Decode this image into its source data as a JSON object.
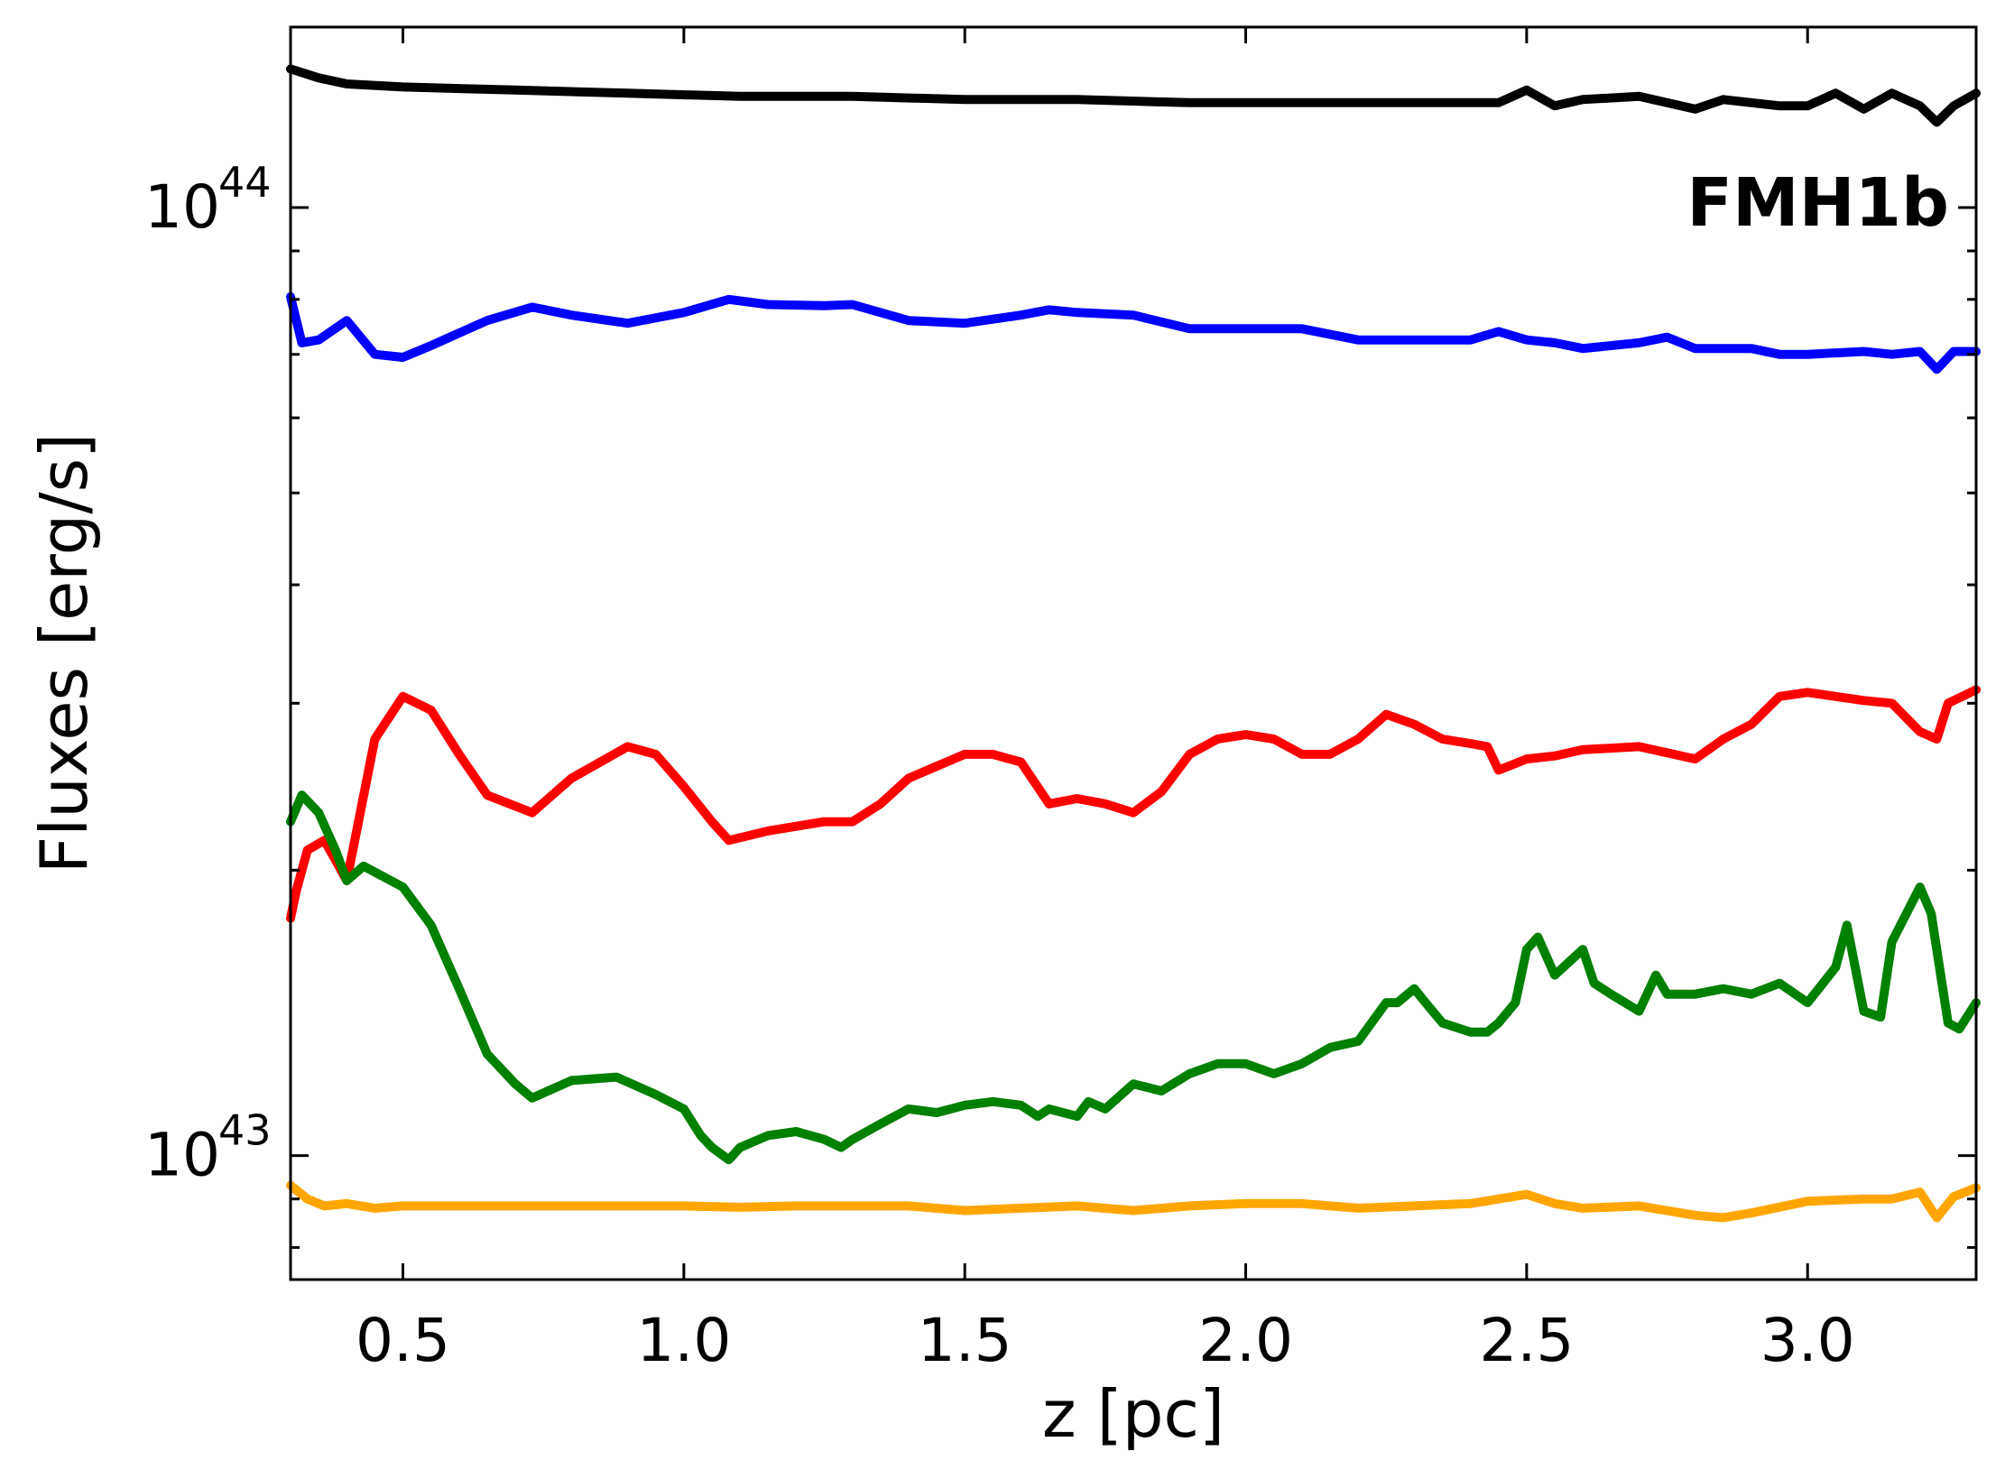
{
  "chart_data": {
    "type": "line",
    "title": "",
    "xlabel": "z [pc]",
    "ylabel": "Fluxes [erg/s]",
    "xlim": [
      0.3,
      3.3
    ],
    "ylim": [
      7.4e+42,
      1.55e+44
    ],
    "yscale": "log",
    "grid": false,
    "legend": "none",
    "annotation": "FMH1b",
    "xticks": [
      {
        "value": 0.5,
        "label": "0.5"
      },
      {
        "value": 1.0,
        "label": "1.0"
      },
      {
        "value": 1.5,
        "label": "1.5"
      },
      {
        "value": 2.0,
        "label": "2.0"
      },
      {
        "value": 2.5,
        "label": "2.5"
      },
      {
        "value": 3.0,
        "label": "3.0"
      }
    ],
    "yticks_major": [
      {
        "value": 1e+43,
        "base": "10",
        "exp": "43"
      },
      {
        "value": 1e+44,
        "base": "10",
        "exp": "44"
      }
    ],
    "yticks_minor": [
      8e+42,
      9e+42,
      2e+43,
      3e+43,
      4e+43,
      5e+43,
      6e+43,
      7e+43,
      8e+43,
      9e+43
    ],
    "series": [
      {
        "color": "#000000",
        "x": [
          0.3,
          0.35,
          0.4,
          0.5,
          0.7,
          0.9,
          1.1,
          1.3,
          1.5,
          1.7,
          1.9,
          2.1,
          2.3,
          2.45,
          2.5,
          2.55,
          2.6,
          2.7,
          2.8,
          2.85,
          2.95,
          3.0,
          3.05,
          3.1,
          3.15,
          3.2,
          3.23,
          3.26,
          3.3
        ],
        "y": [
          1.4e+44,
          1.37e+44,
          1.35e+44,
          1.34e+44,
          1.33e+44,
          1.32e+44,
          1.31e+44,
          1.31e+44,
          1.3e+44,
          1.3e+44,
          1.29e+44,
          1.29e+44,
          1.29e+44,
          1.29e+44,
          1.33e+44,
          1.28e+44,
          1.3e+44,
          1.31e+44,
          1.27e+44,
          1.3e+44,
          1.28e+44,
          1.28e+44,
          1.32e+44,
          1.27e+44,
          1.32e+44,
          1.28e+44,
          1.23e+44,
          1.28e+44,
          1.32e+44
        ]
      },
      {
        "color": "#0000ff",
        "x": [
          0.3,
          0.32,
          0.35,
          0.4,
          0.45,
          0.5,
          0.55,
          0.65,
          0.73,
          0.8,
          0.9,
          1.0,
          1.08,
          1.15,
          1.25,
          1.3,
          1.4,
          1.5,
          1.6,
          1.65,
          1.7,
          1.8,
          1.9,
          2.0,
          2.1,
          2.2,
          2.3,
          2.4,
          2.45,
          2.5,
          2.55,
          2.6,
          2.7,
          2.75,
          2.8,
          2.9,
          2.95,
          3.0,
          3.1,
          3.15,
          3.2,
          3.23,
          3.26,
          3.3
        ],
        "y": [
          8.05e+43,
          7.2e+43,
          7.25e+43,
          7.6e+43,
          7e+43,
          6.95e+43,
          7.15e+43,
          7.6e+43,
          7.85e+43,
          7.7e+43,
          7.55e+43,
          7.75e+43,
          8e+43,
          7.9e+43,
          7.88e+43,
          7.9e+43,
          7.6e+43,
          7.55e+43,
          7.7e+43,
          7.8e+43,
          7.75e+43,
          7.7e+43,
          7.45e+43,
          7.45e+43,
          7.45e+43,
          7.25e+43,
          7.25e+43,
          7.25e+43,
          7.4e+43,
          7.25e+43,
          7.2e+43,
          7.1e+43,
          7.2e+43,
          7.3e+43,
          7.1e+43,
          7.1e+43,
          7e+43,
          7e+43,
          7.05e+43,
          7e+43,
          7.05e+43,
          6.75e+43,
          7.05e+43,
          7.05e+43
        ]
      },
      {
        "color": "#ff0000",
        "x": [
          0.3,
          0.31,
          0.33,
          0.36,
          0.38,
          0.4,
          0.45,
          0.5,
          0.55,
          0.6,
          0.65,
          0.73,
          0.8,
          0.9,
          0.95,
          1.0,
          1.05,
          1.08,
          1.15,
          1.25,
          1.3,
          1.35,
          1.4,
          1.5,
          1.55,
          1.6,
          1.65,
          1.7,
          1.75,
          1.8,
          1.85,
          1.9,
          1.95,
          2.0,
          2.05,
          2.1,
          2.15,
          2.2,
          2.25,
          2.3,
          2.35,
          2.4,
          2.43,
          2.45,
          2.5,
          2.55,
          2.6,
          2.7,
          2.8,
          2.85,
          2.9,
          2.95,
          3.0,
          3.05,
          3.1,
          3.15,
          3.2,
          3.23,
          3.25,
          3.3
        ],
        "y": [
          1.78e+43,
          1.9e+43,
          2.1e+43,
          2.15e+43,
          2.05e+43,
          1.95e+43,
          2.75e+43,
          3.05e+43,
          2.95e+43,
          2.65e+43,
          2.4e+43,
          2.3e+43,
          2.5e+43,
          2.7e+43,
          2.65e+43,
          2.45e+43,
          2.25e+43,
          2.15e+43,
          2.2e+43,
          2.25e+43,
          2.25e+43,
          2.35e+43,
          2.5e+43,
          2.65e+43,
          2.65e+43,
          2.6e+43,
          2.35e+43,
          2.38e+43,
          2.35e+43,
          2.3e+43,
          2.42e+43,
          2.65e+43,
          2.75e+43,
          2.78e+43,
          2.75e+43,
          2.65e+43,
          2.65e+43,
          2.75e+43,
          2.92e+43,
          2.85e+43,
          2.75e+43,
          2.72e+43,
          2.7e+43,
          2.55e+43,
          2.62e+43,
          2.64e+43,
          2.68e+43,
          2.7e+43,
          2.62e+43,
          2.75e+43,
          2.85e+43,
          3.05e+43,
          3.08e+43,
          3.05e+43,
          3.02e+43,
          3e+43,
          2.8e+43,
          2.75e+43,
          3e+43,
          3.1e+43
        ]
      },
      {
        "color": "#008000",
        "x": [
          0.3,
          0.32,
          0.35,
          0.38,
          0.4,
          0.43,
          0.5,
          0.55,
          0.6,
          0.65,
          0.7,
          0.73,
          0.8,
          0.88,
          0.95,
          1.0,
          1.03,
          1.05,
          1.08,
          1.1,
          1.15,
          1.2,
          1.25,
          1.28,
          1.3,
          1.35,
          1.4,
          1.45,
          1.5,
          1.55,
          1.6,
          1.63,
          1.65,
          1.7,
          1.72,
          1.75,
          1.8,
          1.85,
          1.9,
          1.95,
          2.0,
          2.05,
          2.1,
          2.15,
          2.2,
          2.25,
          2.27,
          2.3,
          2.32,
          2.35,
          2.4,
          2.43,
          2.45,
          2.48,
          2.5,
          2.52,
          2.55,
          2.6,
          2.62,
          2.65,
          2.7,
          2.73,
          2.75,
          2.8,
          2.85,
          2.9,
          2.95,
          3.0,
          3.05,
          3.07,
          3.1,
          3.13,
          3.15,
          3.2,
          3.22,
          3.25,
          3.27,
          3.3
        ],
        "y": [
          2.25e+43,
          2.4e+43,
          2.3e+43,
          2.1e+43,
          1.95e+43,
          2.02e+43,
          1.92e+43,
          1.75e+43,
          1.5e+43,
          1.28e+43,
          1.19e+43,
          1.15e+43,
          1.2e+43,
          1.21e+43,
          1.16e+43,
          1.12e+43,
          1.05e+43,
          1.02e+43,
          9.9e+42,
          1.02e+43,
          1.05e+43,
          1.06e+43,
          1.04e+43,
          1.02e+43,
          1.04e+43,
          1.08e+43,
          1.12e+43,
          1.11e+43,
          1.13e+43,
          1.14e+43,
          1.13e+43,
          1.1e+43,
          1.12e+43,
          1.1e+43,
          1.14e+43,
          1.12e+43,
          1.19e+43,
          1.17e+43,
          1.22e+43,
          1.25e+43,
          1.25e+43,
          1.22e+43,
          1.25e+43,
          1.3e+43,
          1.32e+43,
          1.45e+43,
          1.45e+43,
          1.5e+43,
          1.45e+43,
          1.38e+43,
          1.35e+43,
          1.35e+43,
          1.38e+43,
          1.45e+43,
          1.65e+43,
          1.7e+43,
          1.55e+43,
          1.65e+43,
          1.52e+43,
          1.48e+43,
          1.42e+43,
          1.55e+43,
          1.48e+43,
          1.48e+43,
          1.5e+43,
          1.48e+43,
          1.52e+43,
          1.45e+43,
          1.58e+43,
          1.75e+43,
          1.42e+43,
          1.4e+43,
          1.68e+43,
          1.92e+43,
          1.8e+43,
          1.38e+43,
          1.36e+43,
          1.45e+43
        ]
      },
      {
        "color": "#ffa500",
        "x": [
          0.3,
          0.33,
          0.36,
          0.4,
          0.45,
          0.5,
          0.6,
          0.7,
          0.8,
          0.9,
          1.0,
          1.1,
          1.2,
          1.3,
          1.4,
          1.5,
          1.6,
          1.7,
          1.8,
          1.9,
          2.0,
          2.1,
          2.2,
          2.3,
          2.4,
          2.5,
          2.55,
          2.6,
          2.7,
          2.8,
          2.85,
          2.9,
          3.0,
          3.1,
          3.15,
          3.2,
          3.23,
          3.26,
          3.3
        ],
        "y": [
          9.3e+42,
          9e+42,
          8.85e+42,
          8.9e+42,
          8.8e+42,
          8.85e+42,
          8.85e+42,
          8.85e+42,
          8.85e+42,
          8.85e+42,
          8.85e+42,
          8.82e+42,
          8.85e+42,
          8.85e+42,
          8.85e+42,
          8.75e+42,
          8.8e+42,
          8.85e+42,
          8.75e+42,
          8.85e+42,
          8.9e+42,
          8.9e+42,
          8.8e+42,
          8.85e+42,
          8.9e+42,
          9.1e+42,
          8.9e+42,
          8.8e+42,
          8.85e+42,
          8.65e+42,
          8.6e+42,
          8.7e+42,
          8.95e+42,
          9e+42,
          9e+42,
          9.15e+42,
          8.6e+42,
          9.05e+42,
          9.25e+42
        ]
      }
    ]
  }
}
